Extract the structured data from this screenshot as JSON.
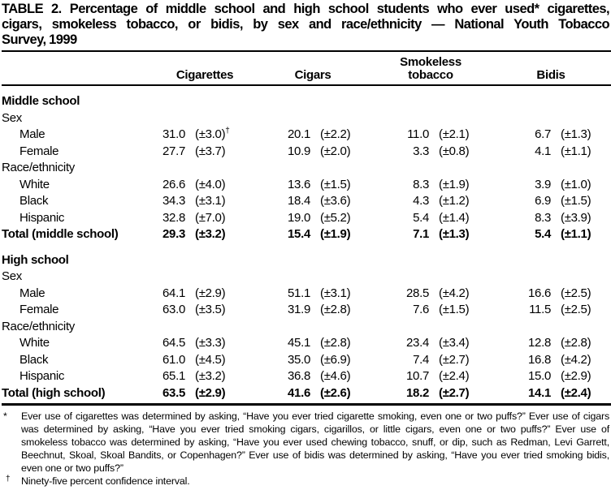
{
  "title": {
    "lines": [
      "TABLE 2. Percentage of middle school and high school students who ever used* cigarettes,",
      "cigars, smokeless tobacco, or bidis, by sex and race/ethnicity — National Youth Tobacco",
      "Survey, 1999"
    ]
  },
  "table": {
    "columns": [
      "Cigarettes",
      "Cigars",
      "Smokeless tobacco",
      "Bidis"
    ],
    "rows": [
      {
        "type": "section",
        "label": "Middle school"
      },
      {
        "type": "subhead",
        "label": "Sex"
      },
      {
        "type": "data",
        "label": "Male",
        "indent": true,
        "cells": [
          "31.0",
          "(±3.0)†",
          "20.1",
          "(±2.2)",
          "11.0",
          "(±2.1)",
          "6.7",
          "(±1.3)"
        ]
      },
      {
        "type": "data",
        "label": "Female",
        "indent": true,
        "cells": [
          "27.7",
          "(±3.7)",
          "10.9",
          "(±2.0)",
          "3.3",
          "(±0.8)",
          "4.1",
          "(±1.1)"
        ]
      },
      {
        "type": "subhead",
        "label": "Race/ethnicity"
      },
      {
        "type": "data",
        "label": "White",
        "indent": true,
        "cells": [
          "26.6",
          "(±4.0)",
          "13.6",
          "(±1.5)",
          "8.3",
          "(±1.9)",
          "3.9",
          "(±1.0)"
        ]
      },
      {
        "type": "data",
        "label": "Black",
        "indent": true,
        "cells": [
          "34.3",
          "(±3.1)",
          "18.4",
          "(±3.6)",
          "4.3",
          "(±1.2)",
          "6.9",
          "(±1.5)"
        ]
      },
      {
        "type": "data",
        "label": "Hispanic",
        "indent": true,
        "cells": [
          "32.8",
          "(±7.0)",
          "19.0",
          "(±5.2)",
          "5.4",
          "(±1.4)",
          "8.3",
          "(±3.9)"
        ]
      },
      {
        "type": "total",
        "label": "Total (middle school)",
        "cells": [
          "29.3",
          "(±3.2)",
          "15.4",
          "(±1.9)",
          "7.1",
          "(±1.3)",
          "5.4",
          "(±1.1)"
        ]
      },
      {
        "type": "section",
        "label": "High school",
        "gap": true
      },
      {
        "type": "subhead",
        "label": "Sex"
      },
      {
        "type": "data",
        "label": "Male",
        "indent": true,
        "cells": [
          "64.1",
          "(±2.9)",
          "51.1",
          "(±3.1)",
          "28.5",
          "(±4.2)",
          "16.6",
          "(±2.5)"
        ]
      },
      {
        "type": "data",
        "label": "Female",
        "indent": true,
        "cells": [
          "63.0",
          "(±3.5)",
          "31.9",
          "(±2.8)",
          "7.6",
          "(±1.5)",
          "11.5",
          "(±2.5)"
        ]
      },
      {
        "type": "subhead",
        "label": "Race/ethnicity"
      },
      {
        "type": "data",
        "label": "White",
        "indent": true,
        "cells": [
          "64.5",
          "(±3.3)",
          "45.1",
          "(±2.8)",
          "23.4",
          "(±3.4)",
          "12.8",
          "(±2.8)"
        ]
      },
      {
        "type": "data",
        "label": "Black",
        "indent": true,
        "cells": [
          "61.0",
          "(±4.5)",
          "35.0",
          "(±6.9)",
          "7.4",
          "(±2.7)",
          "16.8",
          "(±4.2)"
        ]
      },
      {
        "type": "data",
        "label": "Hispanic",
        "indent": true,
        "cells": [
          "65.1",
          "(±3.2)",
          "36.8",
          "(±4.6)",
          "10.7",
          "(±2.4)",
          "15.0",
          "(±2.9)"
        ]
      },
      {
        "type": "total",
        "label": "Total (high school)",
        "cells": [
          "63.5",
          "(±2.9)",
          "41.6",
          "(±2.6)",
          "18.2",
          "(±2.7)",
          "14.1",
          "(±2.4)"
        ]
      }
    ]
  },
  "footnotes": [
    {
      "marker": "*",
      "text": "Ever use of cigarettes was determined by asking, “Have you ever tried cigarette smoking, even one or two puffs?” Ever use of cigars was determined by asking, “Have you ever tried smoking cigars, cigarillos, or little cigars, even one or two puffs?” Ever use of smokeless tobacco was determined by asking, “Have you ever used chewing tobacco, snuff, or dip, such as Redman, Levi Garrett, Beechnut, Skoal, Skoal Bandits, or Copenhagen?” Ever use of bidis was determined by asking, “Have you ever tried smoking bidis, even one or two puffs?”"
    },
    {
      "marker": "†",
      "text": "Ninety-five percent confidence interval."
    }
  ],
  "colors": {
    "text": "#000000",
    "background": "#ffffff",
    "rule": "#000000"
  }
}
